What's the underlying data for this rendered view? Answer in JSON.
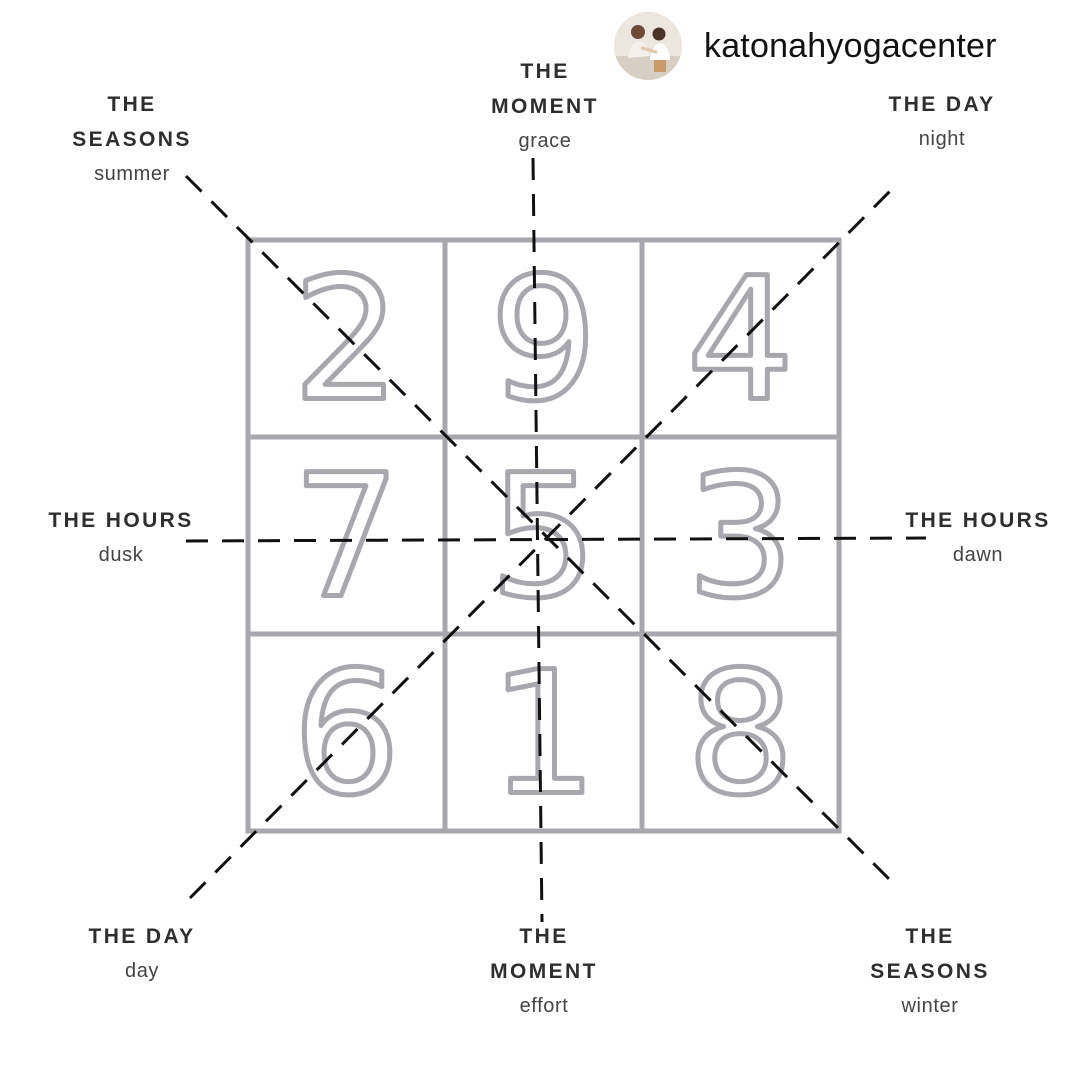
{
  "header": {
    "username": "katonahyogacenter",
    "avatar_icon": "profile-photo-icon"
  },
  "grid": {
    "rows": [
      [
        "2",
        "9",
        "4"
      ],
      [
        "7",
        "5",
        "3"
      ],
      [
        "6",
        "1",
        "8"
      ]
    ],
    "line_color": "#a7a7ad",
    "dash_color": "#111111"
  },
  "labels": {
    "top_left": {
      "lines": [
        "THE",
        "SEASONS"
      ],
      "sub": "summer"
    },
    "top_center": {
      "lines": [
        "THE",
        "MOMENT"
      ],
      "sub": "grace"
    },
    "top_right": {
      "lines": [
        "THE DAY"
      ],
      "sub": "night"
    },
    "middle_left": {
      "lines": [
        "THE HOURS"
      ],
      "sub": "dusk"
    },
    "middle_right": {
      "lines": [
        "THE HOURS"
      ],
      "sub": "dawn"
    },
    "bottom_left": {
      "lines": [
        "THE DAY"
      ],
      "sub": "day"
    },
    "bottom_center": {
      "lines": [
        "THE",
        "MOMENT"
      ],
      "sub": "effort"
    },
    "bottom_right": {
      "lines": [
        "THE",
        "SEASONS"
      ],
      "sub": "winter"
    }
  }
}
